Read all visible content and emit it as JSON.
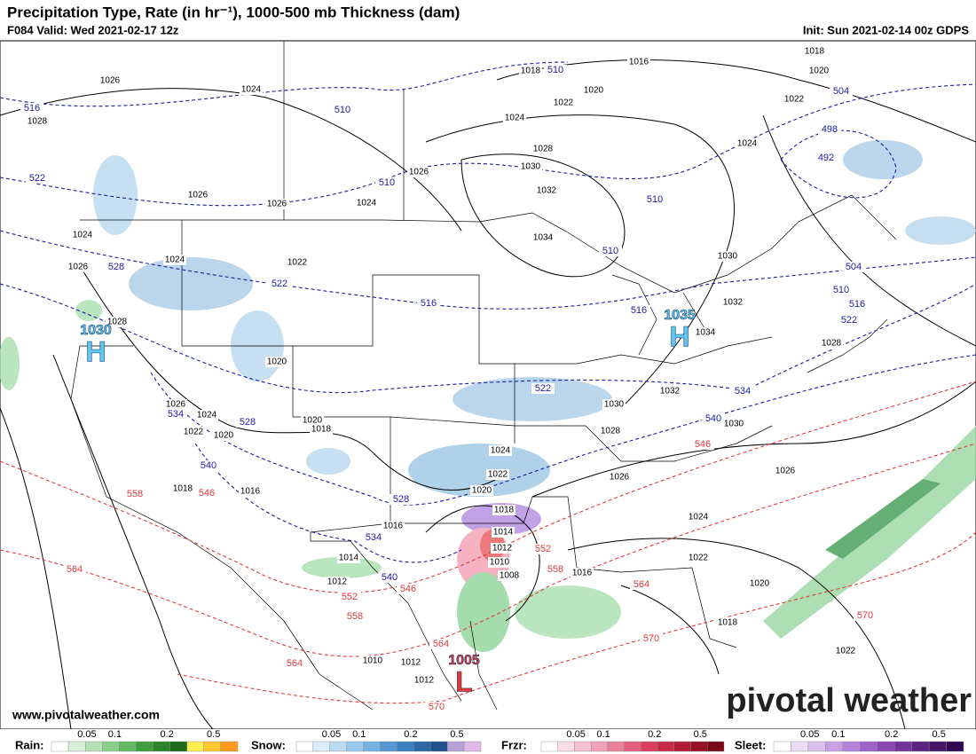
{
  "header": {
    "title": "Precipitation Type, Rate (in hr⁻¹), 1000-500 mb Thickness (dam)",
    "valid": "F084 Valid: Wed 2021-02-17 12z",
    "init": "Init: Sun 2021-02-14 00z GDPS"
  },
  "pressure_centers": [
    {
      "type": "H",
      "value": 1030
    },
    {
      "type": "H",
      "value": 1035
    },
    {
      "type": "L",
      "value": 1005
    }
  ],
  "isobar_labels": [
    1026,
    1024,
    1028,
    1018,
    1016,
    1018,
    1020,
    1020,
    1022,
    1024,
    1022,
    1024,
    1028,
    1030,
    1032,
    1026,
    1026,
    1026,
    1024,
    1034,
    1022,
    1024,
    1024,
    1026,
    1028,
    1030,
    1032,
    1034,
    1028,
    1020,
    1026,
    1024,
    1022,
    1020,
    1020,
    1018,
    1030,
    1028,
    1032,
    1030,
    1024,
    1022,
    1020,
    1018,
    1018,
    1016,
    1016,
    1014,
    1012,
    1010,
    1008,
    1014,
    1012,
    1016,
    1026,
    1024,
    1022,
    1026,
    1020,
    1018,
    1022,
    1010,
    1012,
    1012
  ],
  "thickness_cold_labels": [
    516,
    510,
    522,
    510,
    510,
    504,
    498,
    492,
    510,
    510,
    504,
    510,
    516,
    522,
    528,
    522,
    516,
    516,
    522,
    534,
    540,
    534,
    528,
    540,
    528,
    534,
    540
  ],
  "thickness_warm_labels": [
    546,
    558,
    546,
    564,
    546,
    552,
    558,
    564,
    564,
    552,
    558,
    564,
    570,
    570,
    570
  ],
  "footer": {
    "website": "www.pivotalweather.com",
    "logo": "pivotal weather"
  },
  "legend": [
    {
      "name": "Rain:",
      "ticks": [
        0.05,
        0.1,
        0.2,
        0.5
      ]
    },
    {
      "name": "Snow:",
      "ticks": [
        0.05,
        0.1,
        0.2,
        0.5
      ]
    },
    {
      "name": "Frzr:",
      "ticks": [
        0.05,
        0.1,
        0.2,
        0.5
      ]
    },
    {
      "name": "Sleet:",
      "ticks": [
        0.05,
        0.1,
        0.2,
        0.5
      ]
    }
  ]
}
